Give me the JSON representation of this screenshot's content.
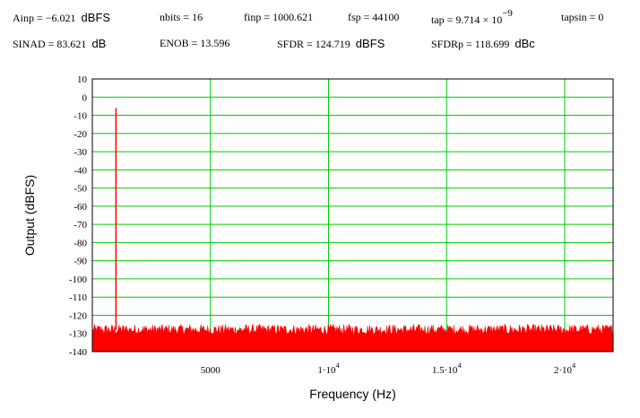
{
  "parameters": {
    "row1": {
      "ainp_label": "Ainp = −6.021",
      "ainp_unit": "dBFS",
      "nbits": "nbits = 16",
      "finp": "finp = 1000.621",
      "fsp": "fsp = 44100",
      "tap_base": "tap = 9.714 × 10",
      "tap_exp": "−9",
      "tapsin": "tapsin = 0"
    },
    "row2": {
      "sinad_label": "SINAD = 83.621",
      "sinad_unit": "dB",
      "enob": "ENOB = 13.596",
      "sfdr_label": "SFDR = 124.719",
      "sfdr_unit": "dBFS",
      "sfdrp_label": "SFDRp = 118.699",
      "sfdrp_unit": "dBc"
    }
  },
  "colors": {
    "grid": "#00cc00",
    "trace": "#ff0000",
    "frame": "#000000"
  },
  "chart_data": {
    "type": "line",
    "title": "",
    "xlabel": "Frequency (Hz)",
    "ylabel": "Output (dBFS)",
    "xlim": [
      0,
      22050
    ],
    "ylim": [
      -140,
      10
    ],
    "y_ticks": [
      10,
      0,
      -10,
      -20,
      -30,
      -40,
      -50,
      -60,
      -70,
      -80,
      -90,
      -100,
      -110,
      -120,
      -130,
      -140
    ],
    "x_ticks": [
      {
        "value": 5000,
        "mantissa": "5000",
        "exp": ""
      },
      {
        "value": 10000,
        "mantissa": "1·10",
        "exp": "4"
      },
      {
        "value": 15000,
        "mantissa": "1.5·10",
        "exp": "4"
      },
      {
        "value": 20000,
        "mantissa": "2·10",
        "exp": "4"
      }
    ],
    "grid": true,
    "series": [
      {
        "signal_peak": {
          "x": 1000.621,
          "y": -6.021
        },
        "noise_floor": {
          "y_min": -131,
          "y_max": -125,
          "typical": -128
        }
      }
    ]
  }
}
